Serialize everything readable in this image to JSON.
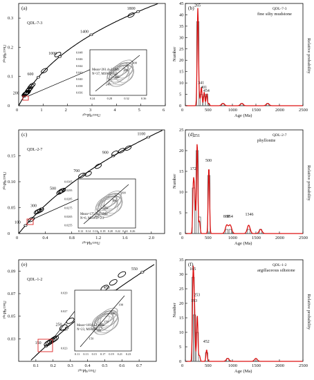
{
  "figure": {
    "conc_panels": [
      {
        "letter": "(a)",
        "sample": "QDL-7-3",
        "xlabel": "²⁰⁷Pb/²³⁵U",
        "ylabel": "²⁰⁶Pb/²³⁸U",
        "xlim": [
          0,
          6
        ],
        "ylim": [
          0,
          0.35
        ],
        "xticks": [
          "0",
          "1",
          "2",
          "3",
          "4",
          "5",
          "6"
        ],
        "yticks": [
          "0",
          "0.1",
          "0.2",
          "0.3"
        ],
        "ages": [
          "200",
          "600",
          "1000",
          "1400",
          "1800"
        ],
        "inset": {
          "label1": "Mean=261.4±2.1Ma",
          "label2": "N=37, MSWD=5.5",
          "xticks": [
            "0.24",
            "0.28",
            "0.32",
            "0.36"
          ],
          "yticks": [
            "0.036",
            "0.038",
            "0.040",
            "0.042",
            "0.044",
            "0.046",
            "0.048"
          ],
          "ages": [
            "300",
            "280",
            "260",
            "240"
          ]
        }
      },
      {
        "letter": "(c)",
        "sample": "QDL-2-7",
        "xlabel": "²⁰⁷Pb/²³⁵U",
        "ylabel": "²⁰⁶Pb/²³⁸U",
        "xlim": [
          0,
          2.2
        ],
        "ylim": [
          0,
          0.2
        ],
        "xticks": [
          "0",
          "0.4",
          "0.8",
          "1.2",
          "1.6",
          "2.0"
        ],
        "yticks": [
          "0",
          "0.05",
          "0.10",
          "0.15"
        ],
        "ages": [
          "100",
          "300",
          "500",
          "700",
          "900",
          "1100"
        ],
        "inset": {
          "label1": "Mean=175.2±4.1Ma",
          "label2": "N=6, MSWD=2.2",
          "xticks": [
            "0.12",
            "0.14",
            "0.16",
            "0.18",
            "0.20",
            "0.22",
            "0.24",
            "0.26"
          ],
          "yticks": [
            "0.0255",
            "0.0265",
            "0.0275",
            "0.0285",
            "0.0295",
            "0.0305"
          ],
          "ages": [
            "190",
            "180",
            "170",
            "160"
          ]
        }
      },
      {
        "letter": "(e)",
        "sample": "QDL-1-2",
        "xlabel": "²⁰⁷Pb/²³⁵U",
        "ylabel": "²⁰⁶Pb/²³⁸U",
        "xlim": [
          0,
          0.8
        ],
        "ylim": [
          0.01,
          0.1
        ],
        "xticks": [
          "0.1",
          "0.2",
          "0.3",
          "0.4",
          "0.5",
          "0.6",
          "0.7"
        ],
        "yticks": [
          "0.03",
          "0.05",
          "0.07",
          "0.09"
        ],
        "ages": [
          "150",
          "250",
          "350",
          "450",
          "550"
        ],
        "inset": {
          "label1": "Mean=169.6±2.1Ma",
          "label2": "N=23, MSWD=2.7",
          "xticks": [
            "0.11",
            "0.13",
            "0.15",
            "0.17",
            "0.19",
            "0.21",
            "0.23"
          ],
          "yticks": [
            "0.023",
            "0.025",
            "0.027",
            "0.029"
          ],
          "ages": [
            "190",
            "180",
            "170",
            "160",
            "150"
          ]
        }
      }
    ],
    "hist_panels": [
      {
        "letter": "(b)",
        "sample": "QDL-7-3",
        "rock": "fine silty mudstone",
        "xlabel": "Age (Ma)",
        "ylabel": "Number",
        "y2label": "Relative probability",
        "xticks": [
          "0",
          "500",
          "1000",
          "1500",
          "2000",
          "2500"
        ],
        "yticks": [
          "0",
          "5",
          "10",
          "15",
          "20",
          "25",
          "30",
          "35",
          "40",
          "45"
        ],
        "peak_labels": [
          "265",
          "341",
          "401",
          "454"
        ]
      },
      {
        "letter": "(d)",
        "sample": "QDL-2-7",
        "rock": "phyllonite",
        "xlabel": "Age (Ma)",
        "ylabel": "Number",
        "y2label": "Relative probability",
        "xticks": [
          "0",
          "500",
          "1000",
          "1500",
          "2000",
          "2500"
        ],
        "yticks": [
          "0",
          "5",
          "10",
          "15",
          "20",
          "25"
        ],
        "peak_labels": [
          "251",
          "172",
          "500",
          "880",
          "954",
          "1346"
        ]
      },
      {
        "letter": "(f)",
        "sample": "QDL-1-2",
        "rock": "argillaceous siltstone",
        "xlabel": "Age (Ma)",
        "ylabel": "Number",
        "y2label": "Relative probability",
        "xticks": [
          "0",
          "500",
          "1000",
          "1500",
          "2000",
          "2500"
        ],
        "yticks": [
          "0",
          "5",
          "10",
          "15",
          "20",
          "25",
          "30",
          "35"
        ],
        "peak_labels": [
          "165",
          "193",
          "253",
          "452"
        ]
      }
    ]
  },
  "chart_data": [
    {
      "type": "scatter",
      "title": "(a)",
      "subtitle": "QDL-7-3",
      "xlabel": "²⁰⁷Pb/²³⁵U",
      "ylabel": "²⁰⁶Pb/²³⁸U",
      "xlim": [
        0,
        6
      ],
      "ylim": [
        0,
        0.35
      ],
      "series": [
        {
          "name": "",
          "x": [
            0.26,
            0.28,
            0.3,
            0.32,
            0.34,
            0.36,
            0.4,
            0.45,
            0.5,
            0.55,
            1.05,
            1.6,
            4.6
          ],
          "y": [
            0.039,
            0.041,
            0.042,
            0.043,
            0.044,
            0.046,
            0.053,
            0.058,
            0.065,
            0.07,
            0.12,
            0.175,
            0.31
          ]
        }
      ]
    },
    {
      "type": "bar",
      "title": "(b)",
      "subtitle": "fine silty mudstone",
      "xlabel": "Age (Ma)",
      "ylabel": "Number",
      "xlim": [
        0,
        2500
      ],
      "ylim": [
        0,
        45
      ],
      "x": [
        265,
        341,
        401,
        454,
        800,
        1200,
        1750
      ],
      "values": [
        37,
        5,
        4,
        5,
        1,
        1,
        1
      ],
      "series": [
        {
          "name": "Relative probability",
          "x": [
            200,
            265,
            300,
            341,
            401,
            454,
            500,
            800,
            1200,
            1750
          ],
          "values": [
            0,
            43,
            3,
            8,
            6,
            5,
            1,
            1,
            1,
            1
          ]
        }
      ]
    },
    {
      "type": "scatter",
      "title": "(c)",
      "subtitle": "QDL-2-7",
      "xlabel": "²⁰⁷Pb/²³⁵U",
      "ylabel": "²⁰⁶Pb/²³⁸U",
      "xlim": [
        0,
        2.2
      ],
      "ylim": [
        0,
        0.2
      ],
      "series": [
        {
          "name": "",
          "x": [
            0.19,
            0.28,
            0.3,
            0.33,
            0.62,
            0.64,
            0.66,
            0.95,
            1.05,
            1.2,
            1.45,
            1.55,
            1.65
          ],
          "y": [
            0.027,
            0.042,
            0.043,
            0.045,
            0.08,
            0.082,
            0.083,
            0.112,
            0.115,
            0.13,
            0.155,
            0.16,
            0.165
          ]
        }
      ]
    },
    {
      "type": "bar",
      "title": "(d)",
      "subtitle": "phyllonite",
      "xlabel": "Age (Ma)",
      "ylabel": "Number",
      "xlim": [
        0,
        2500
      ],
      "ylim": [
        0,
        25
      ],
      "x": [
        172,
        251,
        300,
        500,
        880,
        954,
        1346,
        1600
      ],
      "values": [
        11,
        20,
        4,
        14,
        1,
        1,
        1,
        1
      ],
      "series": [
        {
          "name": "Relative probability",
          "x": [
            120,
            172,
            200,
            251,
            300,
            500,
            880,
            954,
            1346,
            1600
          ],
          "values": [
            0,
            12,
            9,
            22,
            3,
            16,
            2,
            2,
            2,
            1
          ]
        }
      ]
    },
    {
      "type": "scatter",
      "title": "(e)",
      "subtitle": "QDL-1-2",
      "xlabel": "²⁰⁷Pb/²³⁵U",
      "ylabel": "²⁰⁶Pb/²³⁸U",
      "xlim": [
        0,
        0.8
      ],
      "ylim": [
        0.01,
        0.1
      ],
      "series": [
        {
          "name": "",
          "x": [
            0.17,
            0.18,
            0.19,
            0.2,
            0.21,
            0.26,
            0.3,
            0.35,
            0.42,
            0.5,
            0.55,
            0.6
          ],
          "y": [
            0.026,
            0.027,
            0.028,
            0.029,
            0.03,
            0.04,
            0.046,
            0.055,
            0.065,
            0.075,
            0.08,
            0.087
          ]
        }
      ]
    },
    {
      "type": "bar",
      "title": "(f)",
      "subtitle": "argillaceous siltstone",
      "xlabel": "Age (Ma)",
      "ylabel": "Number",
      "xlim": [
        0,
        2500
      ],
      "ylim": [
        0,
        35
      ],
      "x": [
        165,
        193,
        253,
        452,
        900
      ],
      "values": [
        29,
        16,
        10,
        3,
        1
      ],
      "series": [
        {
          "name": "Relative probability",
          "x": [
            120,
            165,
            193,
            253,
            300,
            452,
            900,
            1500
          ],
          "values": [
            0,
            30,
            18,
            16,
            2,
            4,
            1,
            1
          ]
        }
      ]
    }
  ]
}
